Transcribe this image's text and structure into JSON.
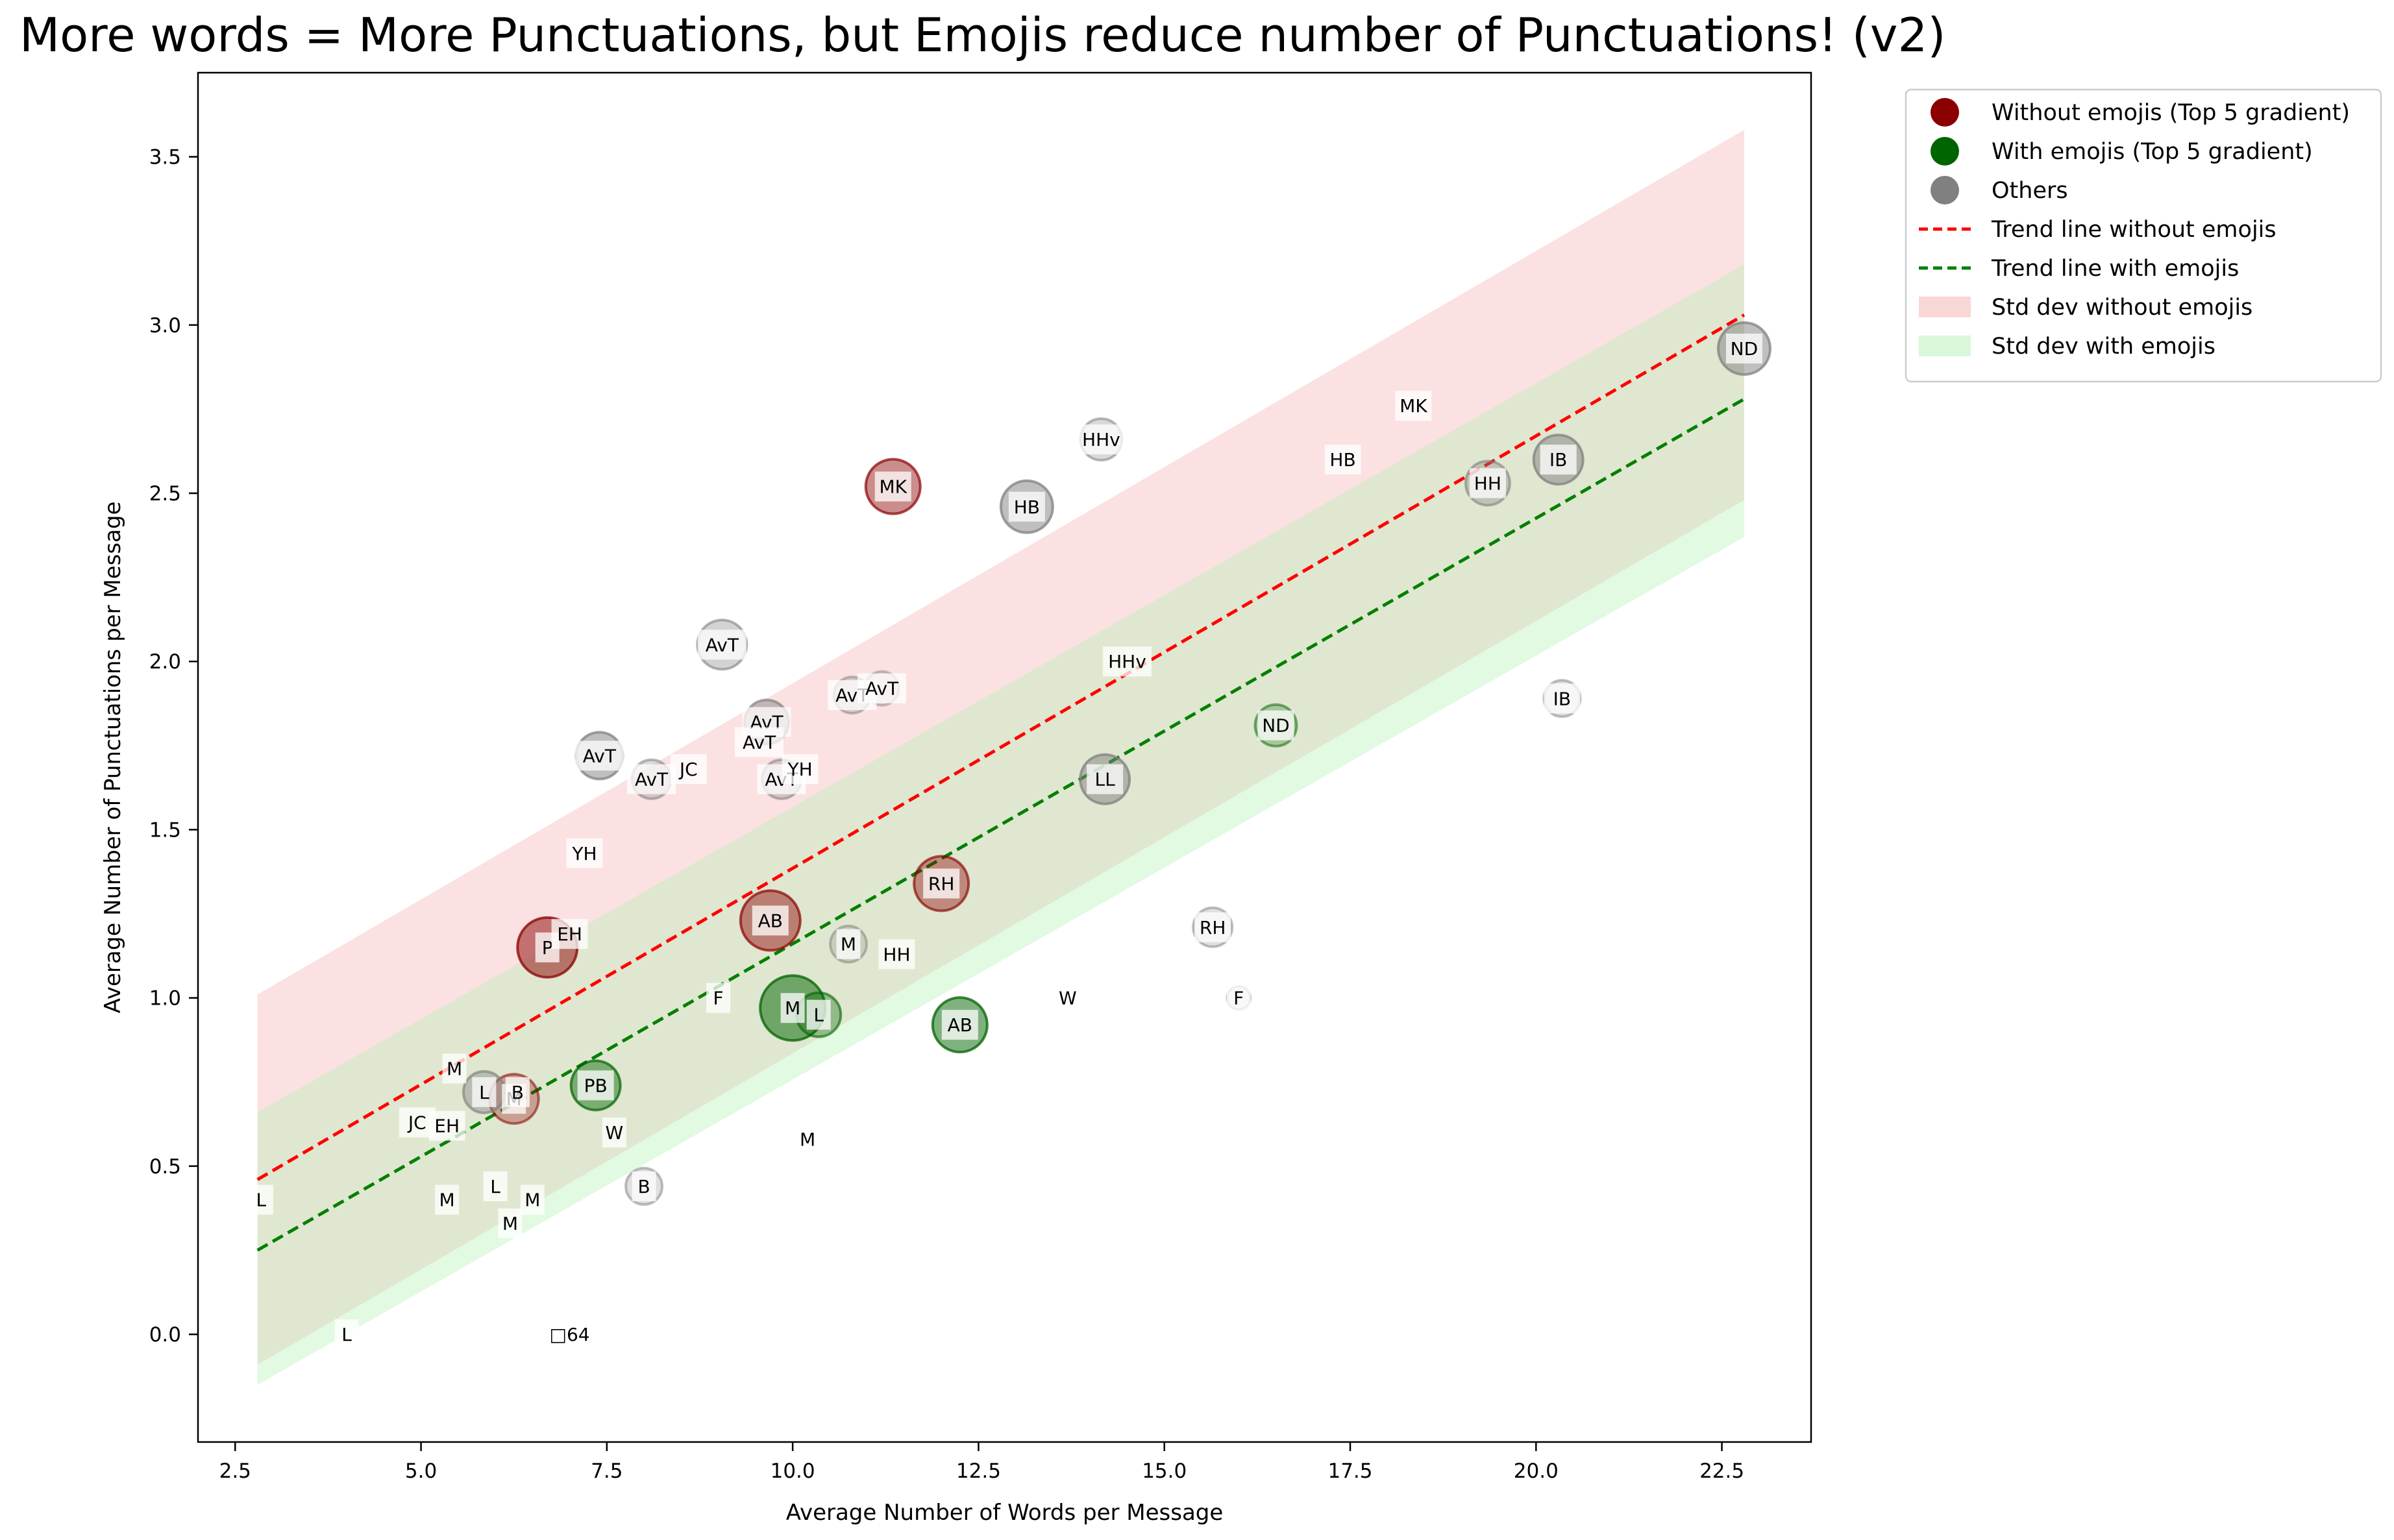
{
  "chart_data": {
    "type": "scatter",
    "title": "More words = More Punctuations, but Emojis reduce number of Punctuations! (v2)",
    "xlabel": "Average Number of Words per Message",
    "ylabel": "Average Number of Punctuations per Message",
    "xlim": [
      2.0,
      23.7
    ],
    "ylim": [
      -0.32,
      3.75
    ],
    "xticks": [
      2.5,
      5.0,
      7.5,
      10.0,
      12.5,
      15.0,
      17.5,
      20.0,
      22.5
    ],
    "yticks": [
      0.0,
      0.5,
      1.0,
      1.5,
      2.0,
      2.5,
      3.0,
      3.5
    ],
    "xtick_labels": [
      "2.5",
      "5.0",
      "7.5",
      "10.0",
      "12.5",
      "15.0",
      "17.5",
      "20.0",
      "22.5"
    ],
    "ytick_labels": [
      "0.0",
      "0.5",
      "1.0",
      "1.5",
      "2.0",
      "2.5",
      "3.0",
      "3.5"
    ],
    "colors": {
      "without_top": "#8b0000",
      "with_top": "#006400",
      "others": "#808080",
      "trend_without": "#ff0000",
      "trend_with": "#008000",
      "band_without": "#f5b7b7",
      "band_with": "#b9f0b9"
    },
    "legend": {
      "position": "outside-top-right",
      "entries": [
        {
          "label": "Without emojis (Top 5 gradient)",
          "kind": "marker",
          "color": "#8b0000"
        },
        {
          "label": "With emojis (Top 5 gradient)",
          "kind": "marker",
          "color": "#006400"
        },
        {
          "label": "Others",
          "kind": "marker",
          "color": "#808080"
        },
        {
          "label": "Trend line without emojis",
          "kind": "line",
          "color": "#ff0000"
        },
        {
          "label": "Trend line with emojis",
          "kind": "line",
          "color": "#008000"
        },
        {
          "label": "Std dev without emojis",
          "kind": "patch",
          "color": "#f5b7b7"
        },
        {
          "label": "Std dev with emojis",
          "kind": "patch",
          "color": "#b9f0b9"
        }
      ]
    },
    "trend_without": {
      "x": [
        2.8,
        22.8
      ],
      "y": [
        0.46,
        3.03
      ]
    },
    "trend_with": {
      "x": [
        2.8,
        22.8
      ],
      "y": [
        0.25,
        2.78
      ]
    },
    "band_without": {
      "x": [
        2.8,
        22.8
      ],
      "upper": [
        1.01,
        3.58
      ],
      "lower": [
        -0.09,
        2.48
      ]
    },
    "band_with": {
      "x": [
        2.8,
        22.8
      ],
      "upper": [
        0.66,
        3.18
      ],
      "lower": [
        -0.15,
        2.37
      ]
    },
    "points": [
      {
        "label": "MK",
        "x": 11.35,
        "y": 2.52,
        "size": 42,
        "color": "#8b0000",
        "alpha": 0.45
      },
      {
        "label": "P",
        "x": 6.7,
        "y": 1.15,
        "size": 46,
        "color": "#8b0000",
        "alpha": 0.5
      },
      {
        "label": "AB",
        "x": 9.7,
        "y": 1.23,
        "size": 46,
        "color": "#8b0000",
        "alpha": 0.45
      },
      {
        "label": "RH",
        "x": 12.0,
        "y": 1.34,
        "size": 42,
        "color": "#8b0000",
        "alpha": 0.4
      },
      {
        "label": "M",
        "x": 6.25,
        "y": 0.7,
        "size": 38,
        "color": "#8b0000",
        "alpha": 0.3
      },
      {
        "label": "M",
        "x": 10.0,
        "y": 0.97,
        "size": 50,
        "color": "#006400",
        "alpha": 0.5
      },
      {
        "label": "AB",
        "x": 12.25,
        "y": 0.92,
        "size": 42,
        "color": "#006400",
        "alpha": 0.5
      },
      {
        "label": "PB",
        "x": 7.35,
        "y": 0.74,
        "size": 38,
        "color": "#006400",
        "alpha": 0.45
      },
      {
        "label": "L",
        "x": 10.35,
        "y": 0.95,
        "size": 34,
        "color": "#006400",
        "alpha": 0.35
      },
      {
        "label": "ND",
        "x": 16.5,
        "y": 1.81,
        "size": 32,
        "color": "#006400",
        "alpha": 0.25
      },
      {
        "label": "ND",
        "x": 22.8,
        "y": 2.93,
        "size": 40,
        "color": "#808080",
        "alpha": 0.5
      },
      {
        "label": "HB",
        "x": 13.15,
        "y": 2.46,
        "size": 40,
        "color": "#808080",
        "alpha": 0.5
      },
      {
        "label": "HHv",
        "x": 14.15,
        "y": 2.66,
        "size": 32,
        "color": "#808080",
        "alpha": 0.3
      },
      {
        "label": "AvT",
        "x": 9.05,
        "y": 2.05,
        "size": 38,
        "color": "#808080",
        "alpha": 0.35
      },
      {
        "label": "IB",
        "x": 20.3,
        "y": 2.6,
        "size": 38,
        "color": "#808080",
        "alpha": 0.5
      },
      {
        "label": "HH",
        "x": 19.35,
        "y": 2.53,
        "size": 34,
        "color": "#808080",
        "alpha": 0.35
      },
      {
        "label": "LL",
        "x": 14.2,
        "y": 1.65,
        "size": 38,
        "color": "#808080",
        "alpha": 0.5
      },
      {
        "label": "AvT",
        "x": 7.4,
        "y": 1.72,
        "size": 36,
        "color": "#808080",
        "alpha": 0.5
      },
      {
        "label": "AvT",
        "x": 9.65,
        "y": 1.82,
        "size": 34,
        "color": "#808080",
        "alpha": 0.45
      },
      {
        "label": "AvT",
        "x": 10.8,
        "y": 1.9,
        "size": 28,
        "color": "#808080",
        "alpha": 0.25
      },
      {
        "label": "AvT",
        "x": 11.2,
        "y": 1.92,
        "size": 26,
        "color": "#808080",
        "alpha": 0.2
      },
      {
        "label": "AvT",
        "x": 8.1,
        "y": 1.65,
        "size": 30,
        "color": "#808080",
        "alpha": 0.3
      },
      {
        "label": "AvT",
        "x": 9.85,
        "y": 1.65,
        "size": 30,
        "color": "#808080",
        "alpha": 0.3
      },
      {
        "label": "IB",
        "x": 20.35,
        "y": 1.89,
        "size": 28,
        "color": "#808080",
        "alpha": 0.25
      },
      {
        "label": "RH",
        "x": 15.65,
        "y": 1.21,
        "size": 30,
        "color": "#808080",
        "alpha": 0.25
      },
      {
        "label": "M",
        "x": 10.75,
        "y": 1.16,
        "size": 28,
        "color": "#808080",
        "alpha": 0.25
      },
      {
        "label": "L",
        "x": 5.85,
        "y": 0.72,
        "size": 32,
        "color": "#808080",
        "alpha": 0.4
      },
      {
        "label": "B",
        "x": 8.0,
        "y": 0.44,
        "size": 28,
        "color": "#808080",
        "alpha": 0.25
      },
      {
        "label": "F",
        "x": 16.0,
        "y": 1.0,
        "size": 18,
        "color": "#808080",
        "alpha": 0.2
      },
      {
        "label": "YH",
        "x": 7.2,
        "y": 1.43,
        "size": 0,
        "color": "#808080",
        "alpha": 0
      },
      {
        "label": "EH",
        "x": 7.0,
        "y": 1.19,
        "size": 0,
        "color": "#808080",
        "alpha": 0
      },
      {
        "label": "JC",
        "x": 8.6,
        "y": 1.68,
        "size": 0,
        "color": "#808080",
        "alpha": 0
      },
      {
        "label": "YH",
        "x": 10.1,
        "y": 1.68,
        "size": 0,
        "color": "#808080",
        "alpha": 0
      },
      {
        "label": "AvT",
        "x": 9.55,
        "y": 1.76,
        "size": 0,
        "color": "#808080",
        "alpha": 0
      },
      {
        "label": "HHv",
        "x": 14.5,
        "y": 2.0,
        "size": 0,
        "color": "#808080",
        "alpha": 0
      },
      {
        "label": "MK",
        "x": 18.35,
        "y": 2.76,
        "size": 0,
        "color": "#808080",
        "alpha": 0
      },
      {
        "label": "HB",
        "x": 17.4,
        "y": 2.6,
        "size": 0,
        "color": "#808080",
        "alpha": 0
      },
      {
        "label": "HH",
        "x": 11.4,
        "y": 1.13,
        "size": 0,
        "color": "#808080",
        "alpha": 0
      },
      {
        "label": "W",
        "x": 13.7,
        "y": 1.0,
        "size": 0,
        "color": "#808080",
        "alpha": 0
      },
      {
        "label": "F",
        "x": 9.0,
        "y": 1.0,
        "size": 0,
        "color": "#808080",
        "alpha": 0
      },
      {
        "label": "M",
        "x": 5.45,
        "y": 0.79,
        "size": 0,
        "color": "#808080",
        "alpha": 0
      },
      {
        "label": "B",
        "x": 6.3,
        "y": 0.72,
        "size": 0,
        "color": "#808080",
        "alpha": 0
      },
      {
        "label": "JC",
        "x": 4.95,
        "y": 0.63,
        "size": 0,
        "color": "#808080",
        "alpha": 0
      },
      {
        "label": "EH",
        "x": 5.35,
        "y": 0.62,
        "size": 0,
        "color": "#808080",
        "alpha": 0
      },
      {
        "label": "W",
        "x": 7.6,
        "y": 0.6,
        "size": 0,
        "color": "#808080",
        "alpha": 0
      },
      {
        "label": "M",
        "x": 10.2,
        "y": 0.58,
        "size": 0,
        "color": "#808080",
        "alpha": 0
      },
      {
        "label": "L",
        "x": 6.0,
        "y": 0.44,
        "size": 0,
        "color": "#808080",
        "alpha": 0
      },
      {
        "label": "M",
        "x": 5.35,
        "y": 0.4,
        "size": 0,
        "color": "#808080",
        "alpha": 0
      },
      {
        "label": "M",
        "x": 6.5,
        "y": 0.4,
        "size": 0,
        "color": "#808080",
        "alpha": 0
      },
      {
        "label": "M",
        "x": 6.2,
        "y": 0.33,
        "size": 0,
        "color": "#808080",
        "alpha": 0
      },
      {
        "label": "L",
        "x": 2.85,
        "y": 0.4,
        "size": 0,
        "color": "#808080",
        "alpha": 0
      },
      {
        "label": "L",
        "x": 4.0,
        "y": 0.0,
        "size": 0,
        "color": "#808080",
        "alpha": 0
      },
      {
        "label": "□64",
        "x": 7.0,
        "y": 0.0,
        "size": 0,
        "color": "#808080",
        "alpha": 0
      }
    ]
  }
}
